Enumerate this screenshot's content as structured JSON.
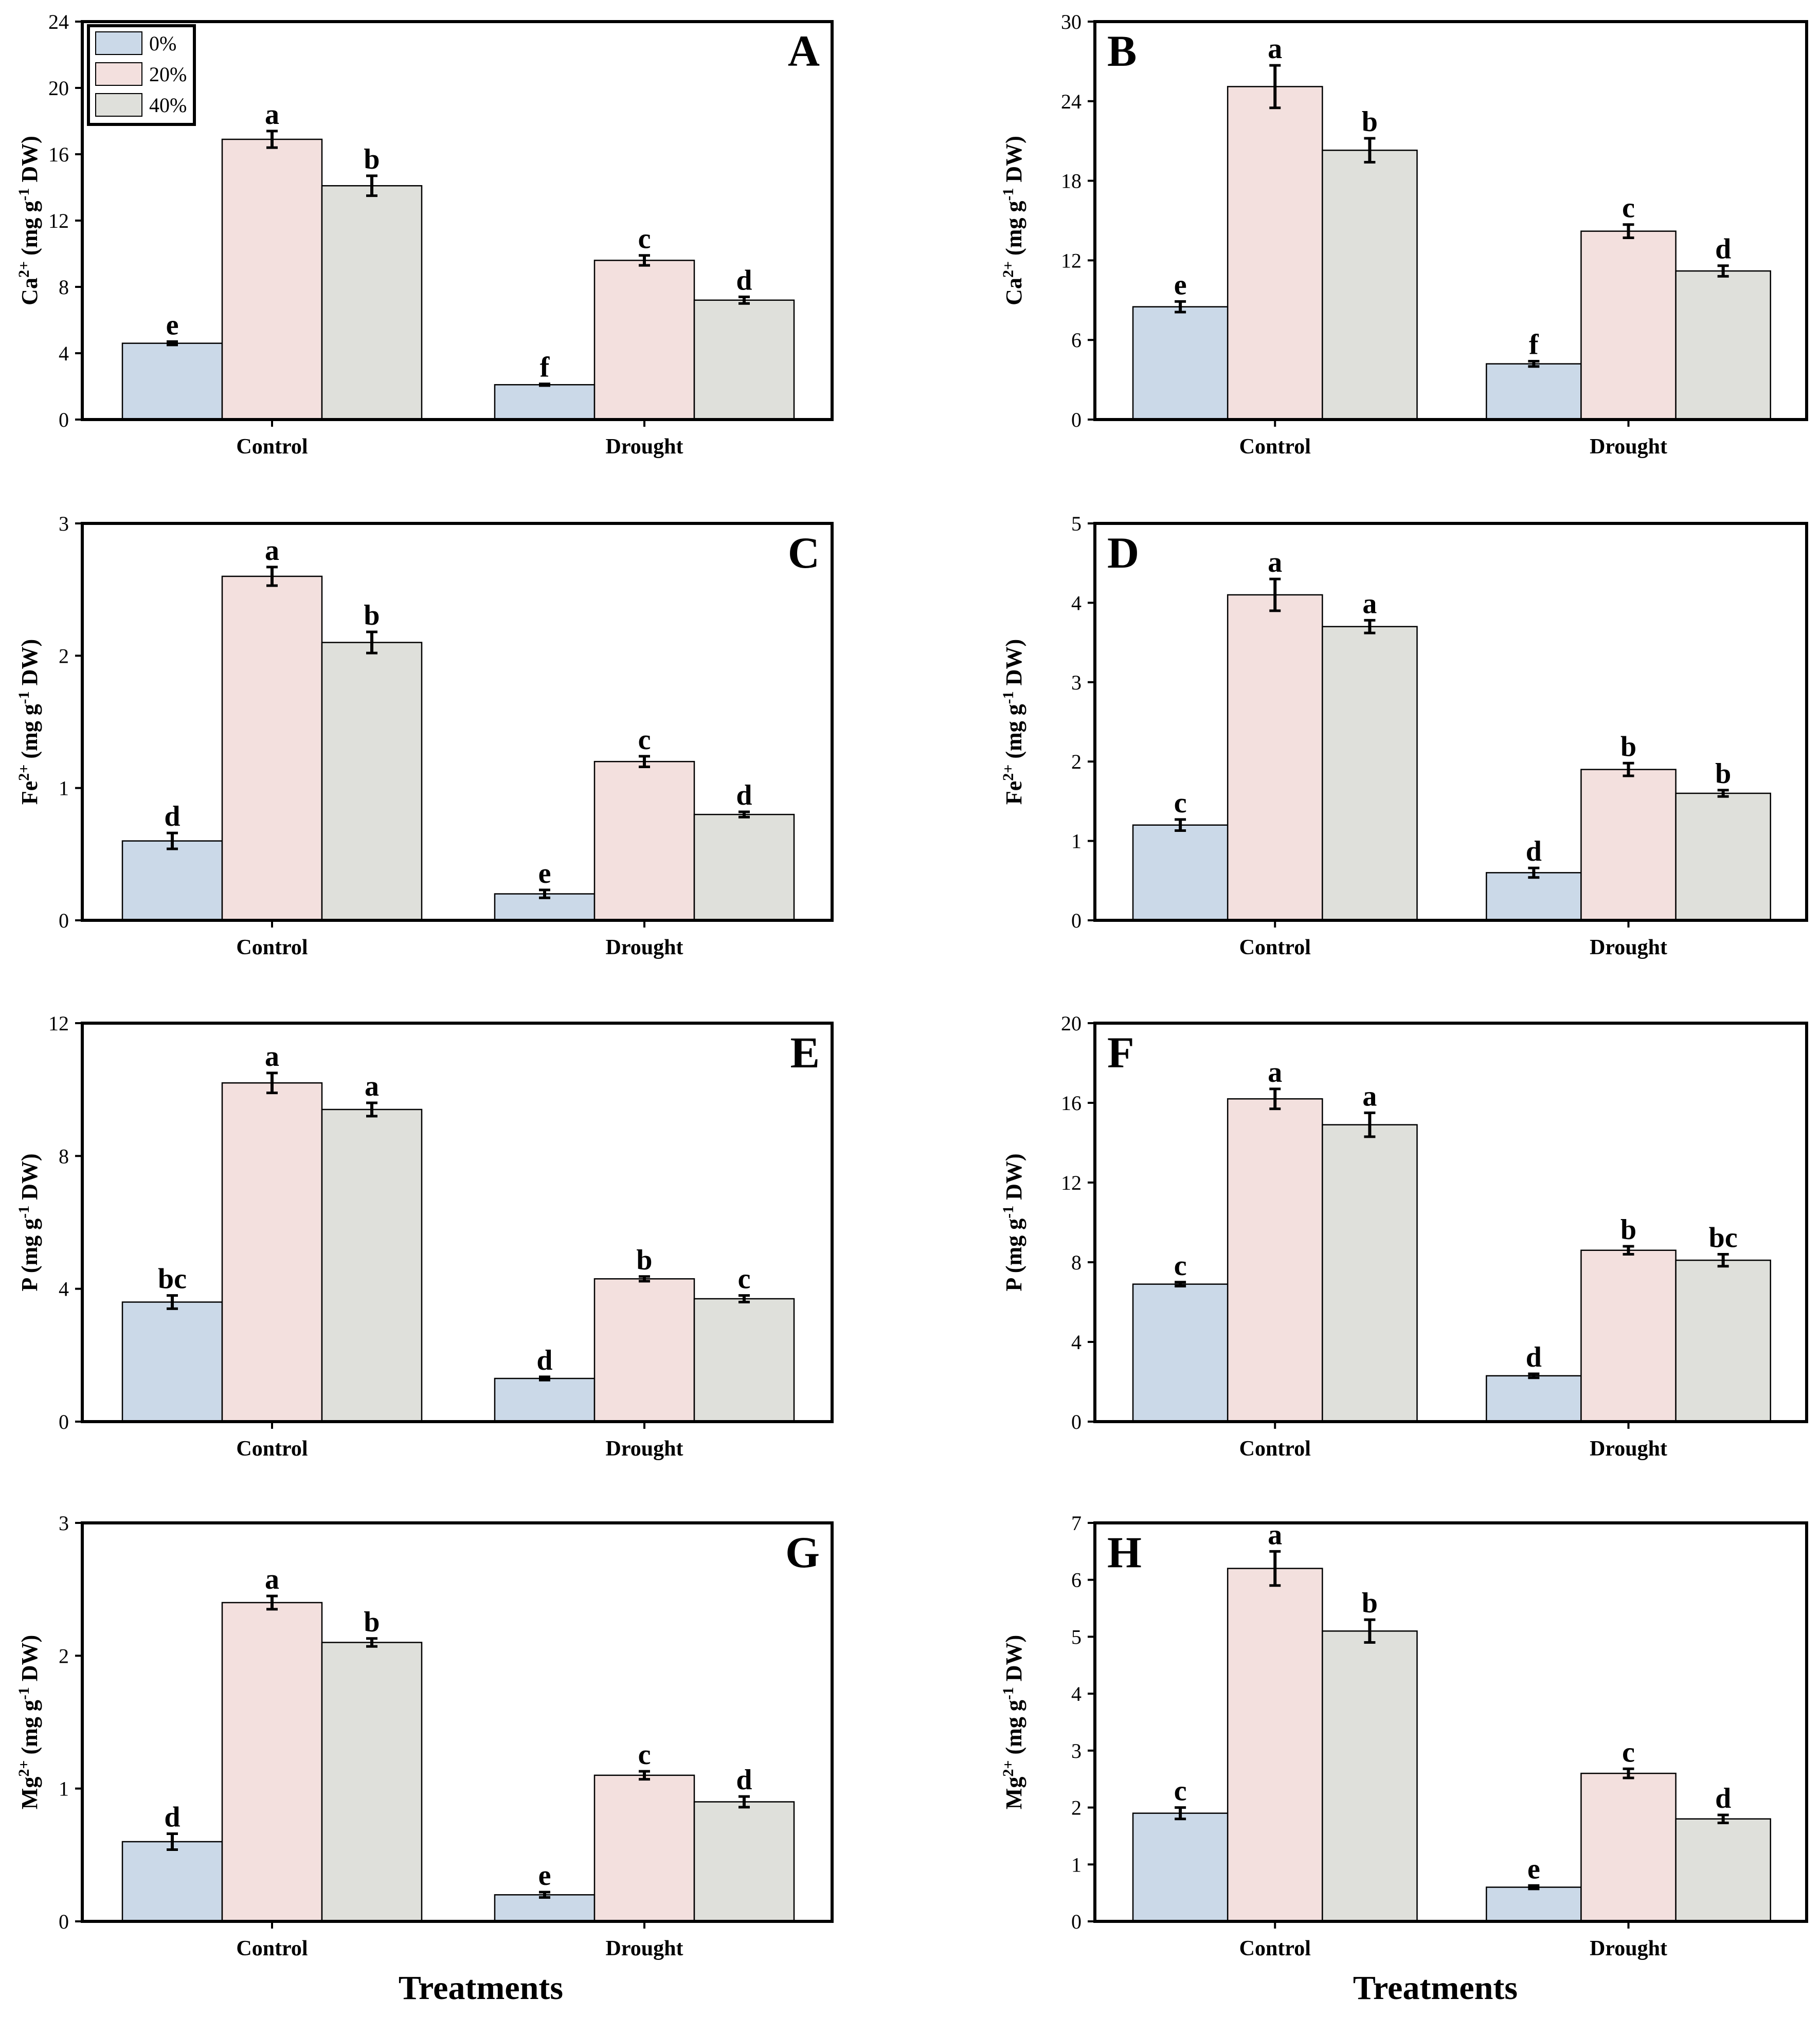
{
  "colors": {
    "s0": "#cbd9e8",
    "s20": "#f3e0de",
    "s40": "#dfe0db",
    "ink": "#000000"
  },
  "x_title": "Treatments",
  "legend": [
    "0%",
    "20%",
    "40%"
  ],
  "chart_data": [
    {
      "panel": "A",
      "type": "bar",
      "ylabel": {
        "base": "Ca",
        "sup": "2+",
        "rest": " (mg g",
        "unit_sup": "-1",
        "tail": " DW)"
      },
      "categories": [
        "Control",
        "Drought"
      ],
      "ylim": [
        0,
        24
      ],
      "yticks": [
        0,
        4,
        8,
        12,
        16,
        20,
        24
      ],
      "series": [
        {
          "name": "0%",
          "values": [
            4.6,
            2.1
          ],
          "errors": [
            0.1,
            0.05
          ],
          "letters": [
            "e",
            "f"
          ]
        },
        {
          "name": "20%",
          "values": [
            16.9,
            9.6
          ],
          "errors": [
            0.5,
            0.3
          ],
          "letters": [
            "a",
            "c"
          ]
        },
        {
          "name": "40%",
          "values": [
            14.1,
            7.2
          ],
          "errors": [
            0.6,
            0.2
          ],
          "letters": [
            "b",
            "d"
          ]
        }
      ]
    },
    {
      "panel": "B",
      "type": "bar",
      "ylabel": {
        "base": "Ca",
        "sup": "2+",
        "rest": " (mg g",
        "unit_sup": "-1",
        "tail": " DW)"
      },
      "categories": [
        "Control",
        "Drought"
      ],
      "ylim": [
        0,
        30
      ],
      "yticks": [
        0,
        6,
        12,
        18,
        24,
        30
      ],
      "series": [
        {
          "name": "0%",
          "values": [
            8.5,
            4.2
          ],
          "errors": [
            0.4,
            0.2
          ],
          "letters": [
            "e",
            "f"
          ]
        },
        {
          "name": "20%",
          "values": [
            25.1,
            14.2
          ],
          "errors": [
            1.6,
            0.5
          ],
          "letters": [
            "a",
            "c"
          ]
        },
        {
          "name": "40%",
          "values": [
            20.3,
            11.2
          ],
          "errors": [
            0.9,
            0.4
          ],
          "letters": [
            "b",
            "d"
          ]
        }
      ]
    },
    {
      "panel": "C",
      "type": "bar",
      "ylabel": {
        "base": "Fe",
        "sup": "2+",
        "rest": " (mg g",
        "unit_sup": "-1",
        "tail": " DW)"
      },
      "categories": [
        "Control",
        "Drought"
      ],
      "ylim": [
        0,
        3
      ],
      "yticks": [
        0,
        1,
        2,
        3
      ],
      "series": [
        {
          "name": "0%",
          "values": [
            0.6,
            0.2
          ],
          "errors": [
            0.06,
            0.03
          ],
          "letters": [
            "d",
            "e"
          ]
        },
        {
          "name": "20%",
          "values": [
            2.6,
            1.2
          ],
          "errors": [
            0.07,
            0.04
          ],
          "letters": [
            "a",
            "c"
          ]
        },
        {
          "name": "40%",
          "values": [
            2.1,
            0.8
          ],
          "errors": [
            0.08,
            0.02
          ],
          "letters": [
            "b",
            "d"
          ]
        }
      ]
    },
    {
      "panel": "D",
      "type": "bar",
      "ylabel": {
        "base": "Fe",
        "sup": "2+",
        "rest": " (mg g",
        "unit_sup": "-1",
        "tail": " DW)"
      },
      "categories": [
        "Control",
        "Drought"
      ],
      "ylim": [
        0,
        5
      ],
      "yticks": [
        0,
        1,
        2,
        3,
        4,
        5
      ],
      "series": [
        {
          "name": "0%",
          "values": [
            1.2,
            0.6
          ],
          "errors": [
            0.07,
            0.06
          ],
          "letters": [
            "c",
            "d"
          ]
        },
        {
          "name": "20%",
          "values": [
            4.1,
            1.9
          ],
          "errors": [
            0.2,
            0.08
          ],
          "letters": [
            "a",
            "b"
          ]
        },
        {
          "name": "40%",
          "values": [
            3.7,
            1.6
          ],
          "errors": [
            0.08,
            0.04
          ],
          "letters": [
            "a",
            "b"
          ]
        }
      ]
    },
    {
      "panel": "E",
      "type": "bar",
      "ylabel": {
        "base": "P",
        "sup": "",
        "rest": "  (mg g",
        "unit_sup": "-1",
        "tail": " DW)"
      },
      "categories": [
        "Control",
        "Drought"
      ],
      "ylim": [
        0,
        12
      ],
      "yticks": [
        0,
        4,
        8,
        12
      ],
      "series": [
        {
          "name": "0%",
          "values": [
            3.6,
            1.3
          ],
          "errors": [
            0.2,
            0.05
          ],
          "letters": [
            "bc",
            "d"
          ]
        },
        {
          "name": "20%",
          "values": [
            10.2,
            4.3
          ],
          "errors": [
            0.3,
            0.07
          ],
          "letters": [
            "a",
            "b"
          ]
        },
        {
          "name": "40%",
          "values": [
            9.4,
            3.7
          ],
          "errors": [
            0.2,
            0.1
          ],
          "letters": [
            "a",
            "c"
          ]
        }
      ]
    },
    {
      "panel": "F",
      "type": "bar",
      "ylabel": {
        "base": "P",
        "sup": "",
        "rest": "  (mg g",
        "unit_sup": "-1",
        "tail": " DW)"
      },
      "categories": [
        "Control",
        "Drought"
      ],
      "ylim": [
        0,
        20
      ],
      "yticks": [
        0,
        4,
        8,
        12,
        16,
        20
      ],
      "series": [
        {
          "name": "0%",
          "values": [
            6.9,
            2.3
          ],
          "errors": [
            0.1,
            0.1
          ],
          "letters": [
            "c",
            "d"
          ]
        },
        {
          "name": "20%",
          "values": [
            16.2,
            8.6
          ],
          "errors": [
            0.5,
            0.2
          ],
          "letters": [
            "a",
            "b"
          ]
        },
        {
          "name": "40%",
          "values": [
            14.9,
            8.1
          ],
          "errors": [
            0.6,
            0.3
          ],
          "letters": [
            "a",
            "bc"
          ]
        }
      ]
    },
    {
      "panel": "G",
      "type": "bar",
      "ylabel": {
        "base": "Mg",
        "sup": "2+",
        "rest": " (mg g",
        "unit_sup": "-1",
        "tail": " DW)"
      },
      "categories": [
        "Control",
        "Drought"
      ],
      "ylim": [
        0,
        3
      ],
      "yticks": [
        0,
        1,
        2,
        3
      ],
      "series": [
        {
          "name": "0%",
          "values": [
            0.6,
            0.2
          ],
          "errors": [
            0.06,
            0.02
          ],
          "letters": [
            "d",
            "e"
          ]
        },
        {
          "name": "20%",
          "values": [
            2.4,
            1.1
          ],
          "errors": [
            0.05,
            0.03
          ],
          "letters": [
            "a",
            "c"
          ]
        },
        {
          "name": "40%",
          "values": [
            2.1,
            0.9
          ],
          "errors": [
            0.03,
            0.04
          ],
          "letters": [
            "b",
            "d"
          ]
        }
      ]
    },
    {
      "panel": "H",
      "type": "bar",
      "ylabel": {
        "base": "Mg",
        "sup": "2+",
        "rest": " (mg g",
        "unit_sup": "-1",
        "tail": " DW)"
      },
      "categories": [
        "Control",
        "Drought"
      ],
      "ylim": [
        0,
        7
      ],
      "yticks": [
        0,
        1,
        2,
        3,
        4,
        5,
        6,
        7
      ],
      "series": [
        {
          "name": "0%",
          "values": [
            1.9,
            0.6
          ],
          "errors": [
            0.1,
            0.03
          ],
          "letters": [
            "c",
            "e"
          ]
        },
        {
          "name": "20%",
          "values": [
            6.2,
            2.6
          ],
          "errors": [
            0.3,
            0.08
          ],
          "letters": [
            "a",
            "c"
          ]
        },
        {
          "name": "40%",
          "values": [
            5.1,
            1.8
          ],
          "errors": [
            0.2,
            0.07
          ],
          "letters": [
            "b",
            "d"
          ]
        }
      ]
    }
  ]
}
